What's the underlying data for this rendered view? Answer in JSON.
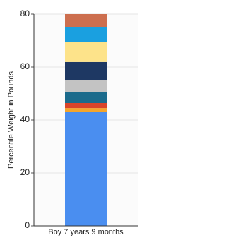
{
  "chart_data": {
    "type": "stacked-bar",
    "y_label": "Percentile Weight in Pounds",
    "categories": [
      "Boy 7 years 9 months"
    ],
    "series": [
      {
        "color": "#4a8ef0",
        "values": [
          43.2
        ]
      },
      {
        "color": "#f4a52c",
        "values": [
          1.3
        ]
      },
      {
        "color": "#d9442a",
        "values": [
          1.9
        ]
      },
      {
        "color": "#1b6b8c",
        "values": [
          4.0
        ]
      },
      {
        "color": "#c3c3c3",
        "values": [
          4.8
        ]
      },
      {
        "color": "#1e3863",
        "values": [
          6.7
        ]
      },
      {
        "color": "#fde38a",
        "values": [
          7.7
        ]
      },
      {
        "color": "#1aa0e0",
        "values": [
          5.6
        ]
      },
      {
        "color": "#cd6f4f",
        "values": [
          4.8
        ]
      }
    ],
    "ylim": [
      0,
      80
    ],
    "yticks": [
      0,
      20,
      40,
      60,
      80
    ],
    "grid": true
  }
}
